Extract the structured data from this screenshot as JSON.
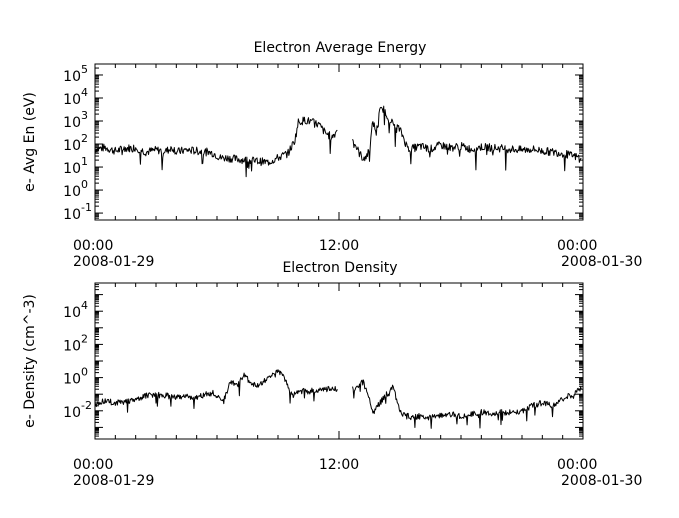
{
  "chart_data": [
    {
      "type": "line",
      "title": "Electron Average Energy",
      "ylabel": "e- Avg En (eV)",
      "xlabel": "",
      "yscale": "log",
      "ylim": [
        0.05,
        300000
      ],
      "xlim": [
        "2008-01-29 00:00",
        "2008-01-30 00:00"
      ],
      "ytick_labels": [
        {
          "value": 0.1,
          "base": "10",
          "exp": "-1"
        },
        {
          "value": 1,
          "base": "10",
          "exp": "0"
        },
        {
          "value": 10,
          "base": "10",
          "exp": "1"
        },
        {
          "value": 100,
          "base": "10",
          "exp": "2"
        },
        {
          "value": 1000,
          "base": "10",
          "exp": "3"
        },
        {
          "value": 10000,
          "base": "10",
          "exp": "4"
        },
        {
          "value": 100000,
          "base": "10",
          "exp": "5"
        }
      ],
      "xtick_labels": [
        {
          "time": "00:00",
          "date": "2008-01-29"
        },
        {
          "time": "12:00",
          "date": ""
        },
        {
          "time": "00:00",
          "date": "2008-01-30"
        }
      ],
      "series": [
        {
          "segments": [
            {
              "x": [
                "00:00",
                "00:30",
                "01:00",
                "01:30",
                "02:00",
                "02:30",
                "03:00",
                "03:30",
                "03:50",
                "04:00",
                "04:30",
                "05:00",
                "05:30",
                "05:50",
                "06:10",
                "06:30",
                "07:00",
                "07:30",
                "08:00",
                "08:30",
                "09:00",
                "09:30",
                "09:50",
                "10:00",
                "10:20",
                "10:40",
                "11:00",
                "11:20",
                "11:40",
                "11:55"
              ],
              "y": [
                60,
                70,
                50,
                65,
                70,
                45,
                55,
                50,
                70,
                45,
                55,
                50,
                45,
                40,
                25,
                25,
                22,
                20,
                18,
                16,
                25,
                40,
                150,
                900,
                1100,
                900,
                700,
                300,
                200,
                400
              ]
            },
            {
              "x": [
                "12:40",
                "12:50",
                "13:00",
                "13:10",
                "13:20",
                "13:30",
                "13:40",
                "13:50",
                "14:00",
                "14:10",
                "14:20",
                "14:30",
                "14:40",
                "14:50",
                "15:00",
                "15:10",
                "15:20",
                "15:30",
                "16:00",
                "16:30",
                "17:00",
                "17:30",
                "18:00",
                "18:30",
                "19:00",
                "19:30",
                "20:00",
                "20:30",
                "21:00",
                "21:30",
                "22:00",
                "22:30",
                "23:00",
                "23:30",
                "23:55"
              ],
              "y": [
                200,
                80,
                40,
                25,
                30,
                50,
                1000,
                300,
                2500,
                3500,
                2000,
                1200,
                700,
                600,
                400,
                200,
                80,
                60,
                80,
                60,
                90,
                70,
                80,
                60,
                75,
                70,
                65,
                60,
                55,
                60,
                50,
                45,
                40,
                30,
                25
              ]
            }
          ]
        }
      ]
    },
    {
      "type": "line",
      "title": "Electron Density",
      "ylabel": "e- Density (cm^-3)",
      "xlabel": "",
      "yscale": "log",
      "ylim": [
        0.0002,
        500000
      ],
      "xlim": [
        "2008-01-29 00:00",
        "2008-01-30 00:00"
      ],
      "ytick_labels": [
        {
          "value": 0.01,
          "base": "10",
          "exp": "-2"
        },
        {
          "value": 1,
          "base": "10",
          "exp": "0"
        },
        {
          "value": 100,
          "base": "10",
          "exp": "2"
        },
        {
          "value": 10000,
          "base": "10",
          "exp": "4"
        }
      ],
      "xtick_labels": [
        {
          "time": "00:00",
          "date": "2008-01-29"
        },
        {
          "time": "12:00",
          "date": ""
        },
        {
          "time": "00:00",
          "date": "2008-01-30"
        }
      ],
      "series": [
        {
          "segments": [
            {
              "x": [
                "00:00",
                "00:30",
                "01:00",
                "01:30",
                "02:00",
                "02:30",
                "03:00",
                "03:30",
                "04:00",
                "04:30",
                "05:00",
                "05:30",
                "05:50",
                "06:00",
                "06:20",
                "06:40",
                "07:00",
                "07:20",
                "07:40",
                "08:00",
                "08:20",
                "08:40",
                "09:00",
                "09:15",
                "09:30",
                "09:45",
                "10:00",
                "10:30",
                "11:00",
                "11:30",
                "11:55"
              ],
              "y": [
                0.025,
                0.04,
                0.03,
                0.035,
                0.04,
                0.08,
                0.09,
                0.08,
                0.07,
                0.08,
                0.06,
                0.1,
                0.12,
                0.08,
                0.04,
                0.6,
                0.3,
                1.5,
                0.4,
                0.3,
                0.6,
                1.0,
                3.0,
                1.2,
                0.3,
                0.08,
                0.15,
                0.15,
                0.18,
                0.2,
                0.2
              ]
            },
            {
              "x": [
                "12:40",
                "12:55",
                "13:10",
                "13:20",
                "13:30",
                "13:40",
                "13:50",
                "14:00",
                "14:10",
                "14:20",
                "14:30",
                "14:40",
                "14:50",
                "15:00",
                "15:20",
                "15:40",
                "16:00",
                "16:30",
                "17:00",
                "17:30",
                "18:00",
                "18:30",
                "19:00",
                "19:30",
                "20:00",
                "20:30",
                "21:00",
                "21:30",
                "22:00",
                "22:30",
                "23:00",
                "23:30",
                "23:55"
              ],
              "y": [
                0.2,
                0.3,
                0.6,
                0.2,
                0.05,
                0.006,
                0.015,
                0.03,
                0.05,
                0.1,
                0.12,
                0.3,
                0.05,
                0.008,
                0.005,
                0.004,
                0.005,
                0.004,
                0.005,
                0.006,
                0.005,
                0.006,
                0.008,
                0.007,
                0.008,
                0.008,
                0.01,
                0.02,
                0.03,
                0.02,
                0.05,
                0.1,
                0.2
              ]
            }
          ]
        }
      ]
    }
  ]
}
